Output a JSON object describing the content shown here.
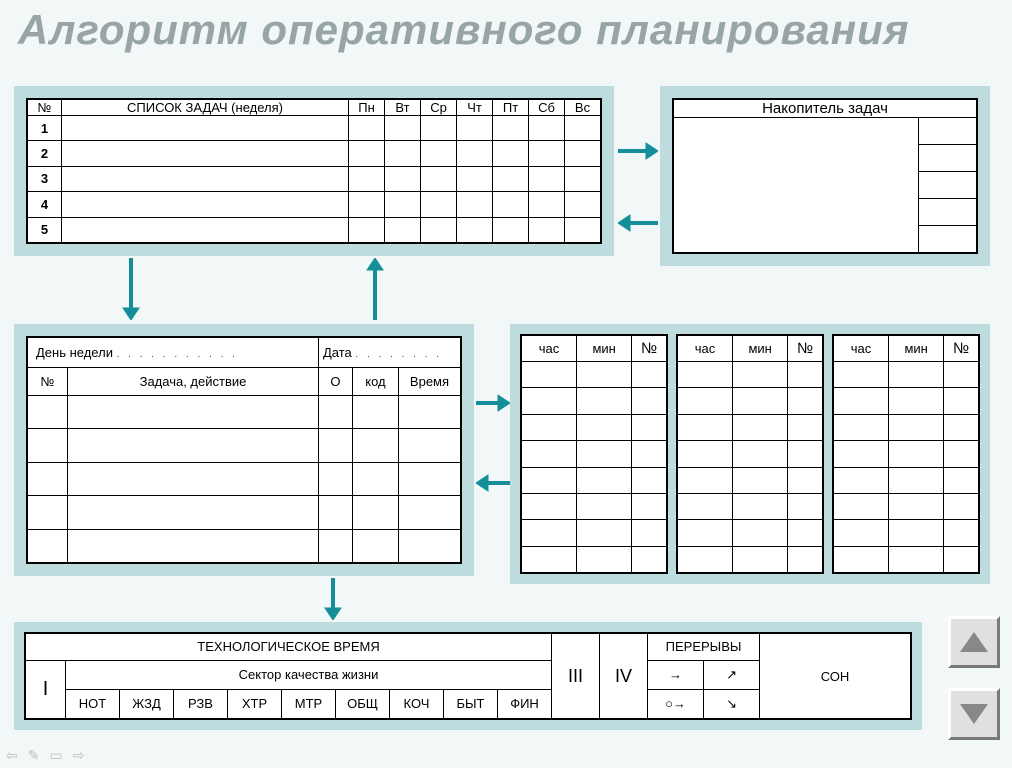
{
  "title": "Алгоритм оперативного планирования",
  "colors": {
    "background": "#f2f7f7",
    "panel": "#bedcde",
    "title_text": "#98a5a5",
    "arrow": "#148f9a",
    "border": "#000000"
  },
  "weekly": {
    "headers": {
      "num": "№",
      "list": "СПИСОК  ЗАДАЧ (неделя)"
    },
    "days": [
      "Пн",
      "Вт",
      "Ср",
      "Чт",
      "Пт",
      "Сб",
      "Вс"
    ],
    "rows": [
      "1",
      "2",
      "3",
      "4",
      "5"
    ]
  },
  "accumulator": {
    "title": "Накопитель задач",
    "side_cells": 5
  },
  "daily": {
    "day_label": "День недели",
    "date_label": "Дата",
    "headers": {
      "num": "№",
      "task": "Задача, действие",
      "mark": "О",
      "code": "код",
      "time": "Время"
    },
    "body_rows": 5
  },
  "time_cards": {
    "count": 3,
    "headers": {
      "hour": "час",
      "min": "мин",
      "num": "№"
    },
    "body_rows": 8
  },
  "tech_block": {
    "tech_label": "ТЕХНОЛОГИЧЕСКОЕ  ВРЕМЯ",
    "sector_label": "Сектор качества жизни",
    "roman_1": "I",
    "roman_3": "III",
    "roman_4": "IV",
    "breaks_label": "ПЕРЕРЫВЫ",
    "sleep_label": "СОН",
    "sector_codes": [
      "НОТ",
      "ЖЗД",
      "РЗВ",
      "ХТР",
      "МТР",
      "ОБЩ",
      "КОЧ",
      "БЫТ",
      "ФИН"
    ],
    "break_symbols": [
      [
        "→",
        "↗"
      ],
      [
        "○→",
        "↘"
      ]
    ]
  }
}
